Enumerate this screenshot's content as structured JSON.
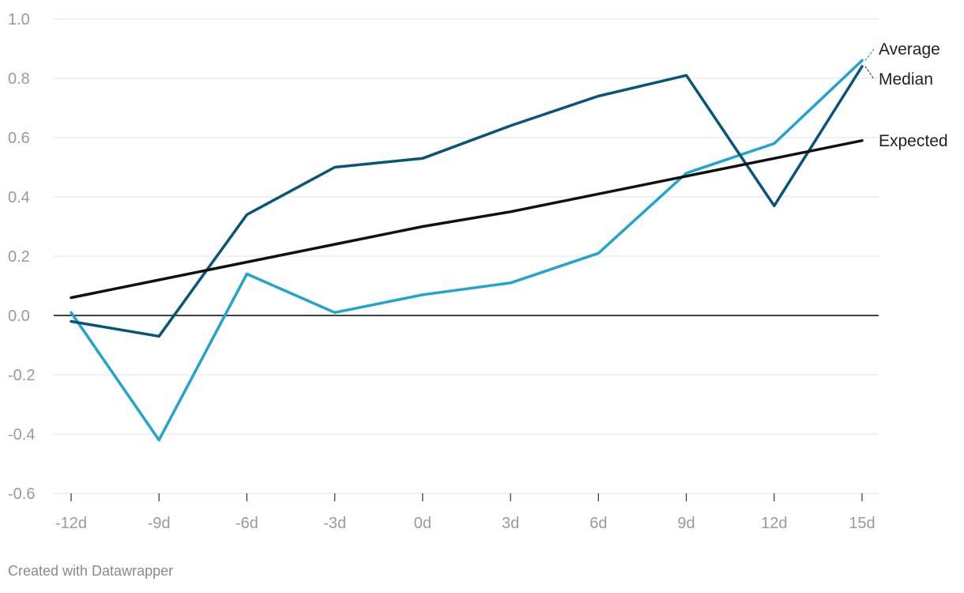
{
  "chart_data": {
    "type": "line",
    "x": [
      "-12d",
      "-9d",
      "-6d",
      "-3d",
      "0d",
      "3d",
      "6d",
      "9d",
      "12d",
      "15d"
    ],
    "y_ticks": [
      "1.0",
      "0.8",
      "0.6",
      "0.4",
      "0.2",
      "0.0",
      "-0.2",
      "-0.4",
      "-0.6"
    ],
    "y_tick_values": [
      1.0,
      0.8,
      0.6,
      0.4,
      0.2,
      0.0,
      -0.2,
      -0.4,
      -0.6
    ],
    "ylim": [
      -0.6,
      1.0
    ],
    "grid": true,
    "zero_line": true,
    "series": [
      {
        "name": "Average",
        "color": "#21a4cf",
        "values": [
          0.01,
          -0.42,
          0.14,
          0.01,
          0.07,
          0.11,
          0.21,
          0.48,
          0.58,
          0.86
        ]
      },
      {
        "name": "Median",
        "color": "#08557a",
        "values": [
          -0.02,
          -0.07,
          0.34,
          0.5,
          0.53,
          0.64,
          0.74,
          0.81,
          0.37,
          0.84
        ]
      },
      {
        "name": "Expected",
        "color": "#111111",
        "values": [
          0.06,
          0.12,
          0.18,
          0.24,
          0.3,
          0.35,
          0.41,
          0.47,
          0.53,
          0.59
        ]
      }
    ]
  },
  "footer": {
    "credit": "Created with Datawrapper"
  }
}
